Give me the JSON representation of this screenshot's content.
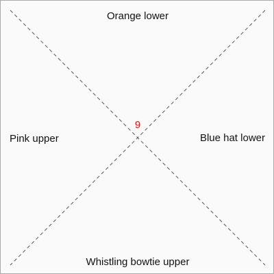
{
  "diagram": {
    "center_value": "9",
    "labels": {
      "top": "Orange lower",
      "right": "Blue hat lower",
      "bottom": "Whistling bowtie upper",
      "left": "Pink upper"
    }
  },
  "colors": {
    "background": "#fafafa",
    "border": "#a8a8a8",
    "diagonal_lines": "#555555",
    "label_text": "#111111",
    "center_value": "#ff0000"
  }
}
